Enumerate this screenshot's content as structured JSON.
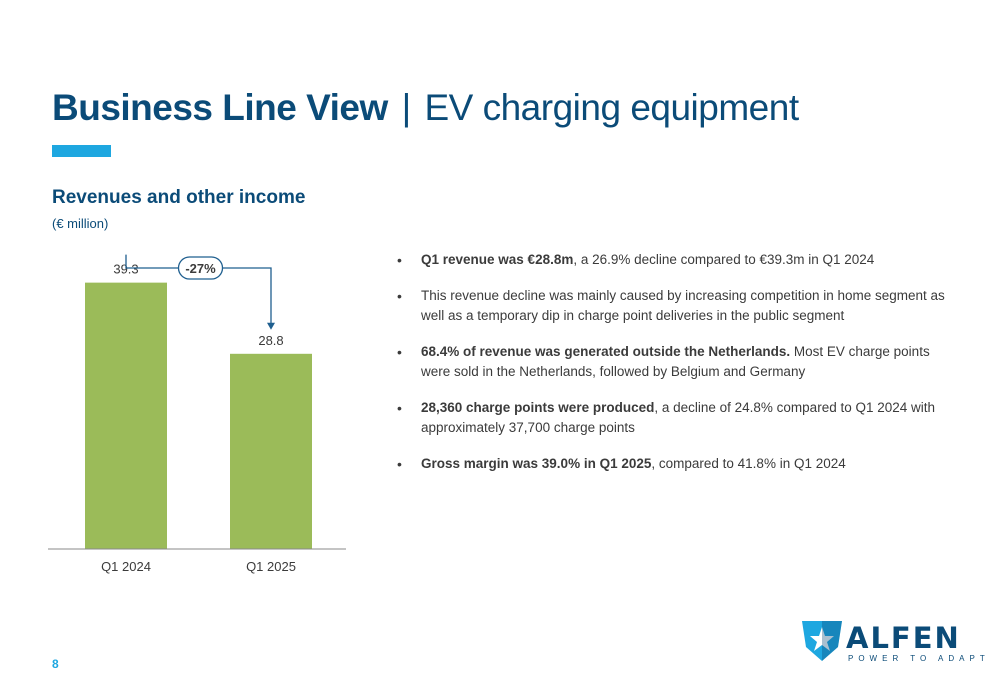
{
  "header": {
    "title_bold": "Business Line View",
    "title_sep": "|",
    "title_light": "EV charging equipment"
  },
  "section": {
    "title": "Revenues and other income",
    "unit": "(€ million)"
  },
  "chart_data": {
    "type": "bar",
    "categories": [
      "Q1 2024",
      "Q1 2025"
    ],
    "values": [
      39.3,
      28.8
    ],
    "value_labels": [
      "39.3",
      "28.8"
    ],
    "ylim": [
      0,
      45
    ],
    "change_label": "-27%",
    "bar_color": "#9bbb59",
    "arrow_color": "#1f5f8f",
    "grid": false
  },
  "bullets": [
    {
      "bold": "Q1 revenue was €28.8m",
      "text": ", a 26.9% decline compared to €39.3m in Q1 2024"
    },
    {
      "bold": "",
      "text": "This revenue decline was mainly caused by increasing competition in home segment as well as a temporary dip in charge point deliveries in the public segment"
    },
    {
      "bold": "68.4% of revenue was generated outside the Netherlands.",
      "text": " Most EV charge points were sold in the Netherlands, followed by Belgium and Germany"
    },
    {
      "bold": "28,360 charge points were produced",
      "text": ", a decline of 24.8% compared to Q1 2024 with approximately 37,700 charge points"
    },
    {
      "bold": "Gross margin was 39.0% in Q1 2025",
      "text": ", compared to 41.8% in Q1 2024"
    }
  ],
  "footer": {
    "page_number": "8",
    "logo_word": "ALFEN",
    "logo_tagline": "POWER TO ADAPT",
    "logo_icon": "alfen-shield-star-icon"
  },
  "colors": {
    "brand_blue": "#0b4b78",
    "accent_blue": "#1ea7e0",
    "bar_green": "#9bbb59"
  }
}
